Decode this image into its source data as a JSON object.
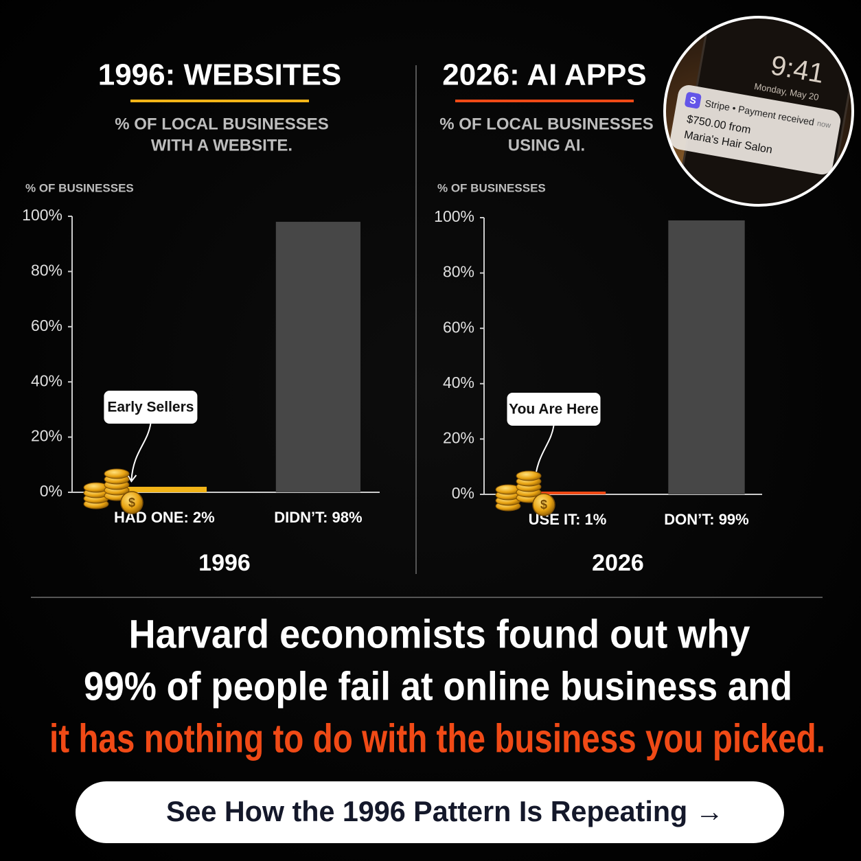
{
  "chart_data": [
    {
      "type": "bar",
      "title": "1996: WEBSITES",
      "subtitle": [
        "% OF LOCAL BUSINESSES",
        "WITH A WEBSITE."
      ],
      "y_label": "% OF BUSINESSES",
      "x_label": "1996",
      "categories": [
        "HAD ONE: 2%",
        "DIDN’T: 98%"
      ],
      "values": [
        2,
        98
      ],
      "colors": [
        "#f2b418",
        "#474747"
      ],
      "ylim": [
        0,
        100
      ],
      "yticks": [
        {
          "value": 0,
          "label": "0%"
        },
        {
          "value": 20,
          "label": "20%"
        },
        {
          "value": 40,
          "label": "40%"
        },
        {
          "value": 60,
          "label": "60%"
        },
        {
          "value": 80,
          "label": "80%"
        },
        {
          "value": 100,
          "label": "100%"
        }
      ],
      "annotation": "Early Sellers"
    },
    {
      "type": "bar",
      "title": "2026: AI APPS",
      "subtitle": [
        "% OF LOCAL BUSINESSES",
        "USING AI."
      ],
      "y_label": "% OF BUSINESSES",
      "x_label": "2026",
      "categories": [
        "USE IT: 1%",
        "DON’T: 99%"
      ],
      "values": [
        1,
        99
      ],
      "colors": [
        "#f04a16",
        "#474747"
      ],
      "ylim": [
        0,
        100
      ],
      "yticks": [
        {
          "value": 0,
          "label": "0%"
        },
        {
          "value": 20,
          "label": "20%"
        },
        {
          "value": 40,
          "label": "40%"
        },
        {
          "value": 60,
          "label": "60%"
        },
        {
          "value": 80,
          "label": "80%"
        },
        {
          "value": 100,
          "label": "100%"
        }
      ],
      "annotation": "You Are Here"
    }
  ],
  "headline": [
    "Harvard economists found out why",
    "99% of people fail at online business and",
    "it has nothing to do with the business you picked."
  ],
  "cta": "See How the 1996 Pattern Is Repeating →",
  "notification": {
    "time": "9:41",
    "date": "Monday, May 20",
    "icon": "S",
    "app": "Stripe • Payment received",
    "when": "now",
    "amount": "$750.00 from",
    "from": "Maria's Hair Salon"
  }
}
